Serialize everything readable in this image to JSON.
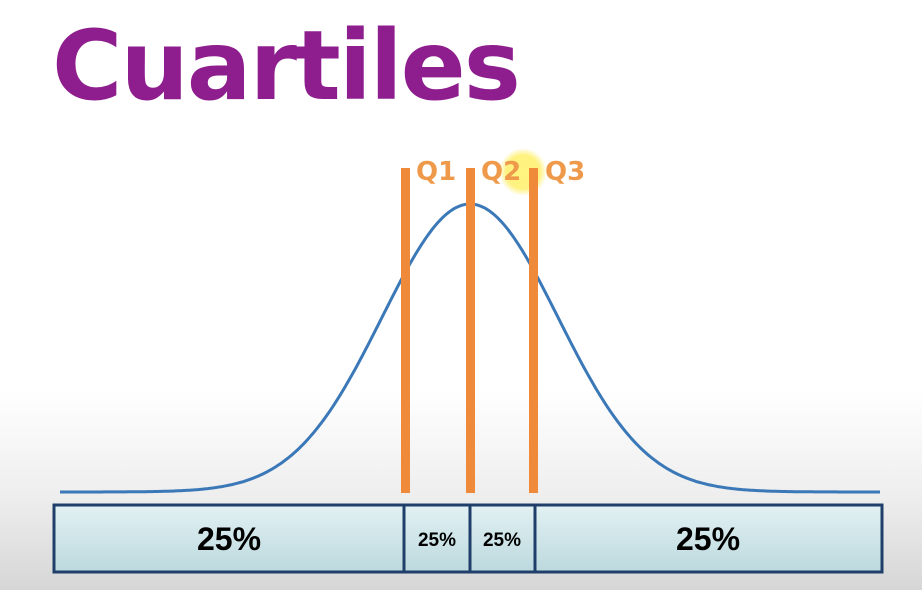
{
  "title": "Cuartiles",
  "quartile_labels": [
    "Q1",
    "Q2",
    "Q3"
  ],
  "segment_labels": [
    "25%",
    "25%",
    "25%",
    "25%"
  ],
  "colors": {
    "title": "#8e1e8e",
    "curve": "#3b78b8",
    "quartile_lines": "#ee8a3a",
    "quartile_text": "#ee9a4a",
    "bar_fill": "#cfe6ea",
    "bar_border": "#1f3f6a",
    "highlight": "#fff06a"
  }
}
